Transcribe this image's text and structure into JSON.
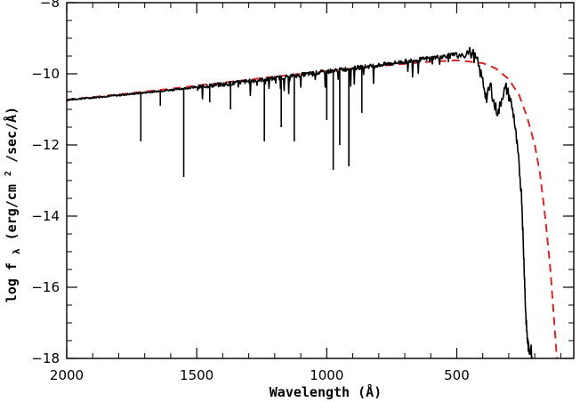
{
  "chart_data": {
    "type": "line",
    "xlabel": "Wavelength (Å)",
    "ylabel": {
      "prefix": "log f",
      "subscript": "λ",
      "mid": " (erg/cm",
      "superscript": "2",
      "suffix": "/sec/Å)"
    },
    "xlim": [
      2000,
      50
    ],
    "ylim": [
      -18,
      -8
    ],
    "x_ticks": [
      "2000",
      "1500",
      "1000",
      "500"
    ],
    "x_tick_values": [
      2000,
      1500,
      1000,
      500
    ],
    "y_ticks": [
      "−8",
      "−10",
      "−12",
      "−14",
      "−16",
      "−18"
    ],
    "y_tick_values": [
      -8,
      -10,
      -12,
      -14,
      -16,
      -18
    ],
    "series": [
      {
        "line_style": "solid",
        "color": "#000000",
        "continuum": [
          [
            2000,
            -10.73
          ],
          [
            1800,
            -10.6
          ],
          [
            1600,
            -10.45
          ],
          [
            1400,
            -10.29
          ],
          [
            1200,
            -10.12
          ],
          [
            1000,
            -9.93
          ],
          [
            800,
            -9.75
          ],
          [
            600,
            -9.55
          ],
          [
            500,
            -9.45
          ]
        ],
        "tail": [
          [
            500,
            -9.42
          ],
          [
            470,
            -9.4
          ],
          [
            440,
            -9.42
          ],
          [
            420,
            -9.7
          ],
          [
            400,
            -10.2
          ],
          [
            385,
            -10.7
          ],
          [
            370,
            -10.3
          ],
          [
            355,
            -10.9
          ],
          [
            340,
            -11.1
          ],
          [
            325,
            -10.6
          ],
          [
            310,
            -10.4
          ],
          [
            295,
            -10.7
          ],
          [
            280,
            -11.2
          ],
          [
            270,
            -11.9
          ],
          [
            260,
            -12.6
          ],
          [
            250,
            -13.5
          ],
          [
            245,
            -14.6
          ],
          [
            240,
            -15.6
          ],
          [
            236,
            -16.5
          ],
          [
            232,
            -17.1
          ],
          [
            228,
            -17.5
          ],
          [
            222,
            -17.8
          ],
          [
            215,
            -17.7
          ],
          [
            210,
            -18.0
          ]
        ],
        "absorption_lines": [
          {
            "x": 1715,
            "y": -11.9
          },
          {
            "x": 1640,
            "y": -10.9
          },
          {
            "x": 1550,
            "y": -12.9
          },
          {
            "x": 1450,
            "y": -10.8
          },
          {
            "x": 1370,
            "y": -11.0
          },
          {
            "x": 1240,
            "y": -11.9
          },
          {
            "x": 1175,
            "y": -11.5
          },
          {
            "x": 1125,
            "y": -11.9
          },
          {
            "x": 1000,
            "y": -11.3
          },
          {
            "x": 975,
            "y": -12.7
          },
          {
            "x": 950,
            "y": -12.0
          },
          {
            "x": 915,
            "y": -12.6
          },
          {
            "x": 865,
            "y": -11.1
          }
        ]
      },
      {
        "line_style": "dashed",
        "color": "#d62728",
        "points": [
          [
            2000,
            -10.73
          ],
          [
            1800,
            -10.58
          ],
          [
            1600,
            -10.42
          ],
          [
            1400,
            -10.25
          ],
          [
            1200,
            -10.08
          ],
          [
            1000,
            -9.92
          ],
          [
            800,
            -9.78
          ],
          [
            600,
            -9.66
          ],
          [
            500,
            -9.62
          ],
          [
            400,
            -9.7
          ],
          [
            350,
            -9.85
          ],
          [
            300,
            -10.15
          ],
          [
            260,
            -10.6
          ],
          [
            230,
            -11.2
          ],
          [
            200,
            -12.0
          ],
          [
            180,
            -12.8
          ],
          [
            160,
            -14.0
          ],
          [
            140,
            -15.5
          ],
          [
            125,
            -17.0
          ],
          [
            115,
            -18.0
          ]
        ]
      }
    ]
  }
}
